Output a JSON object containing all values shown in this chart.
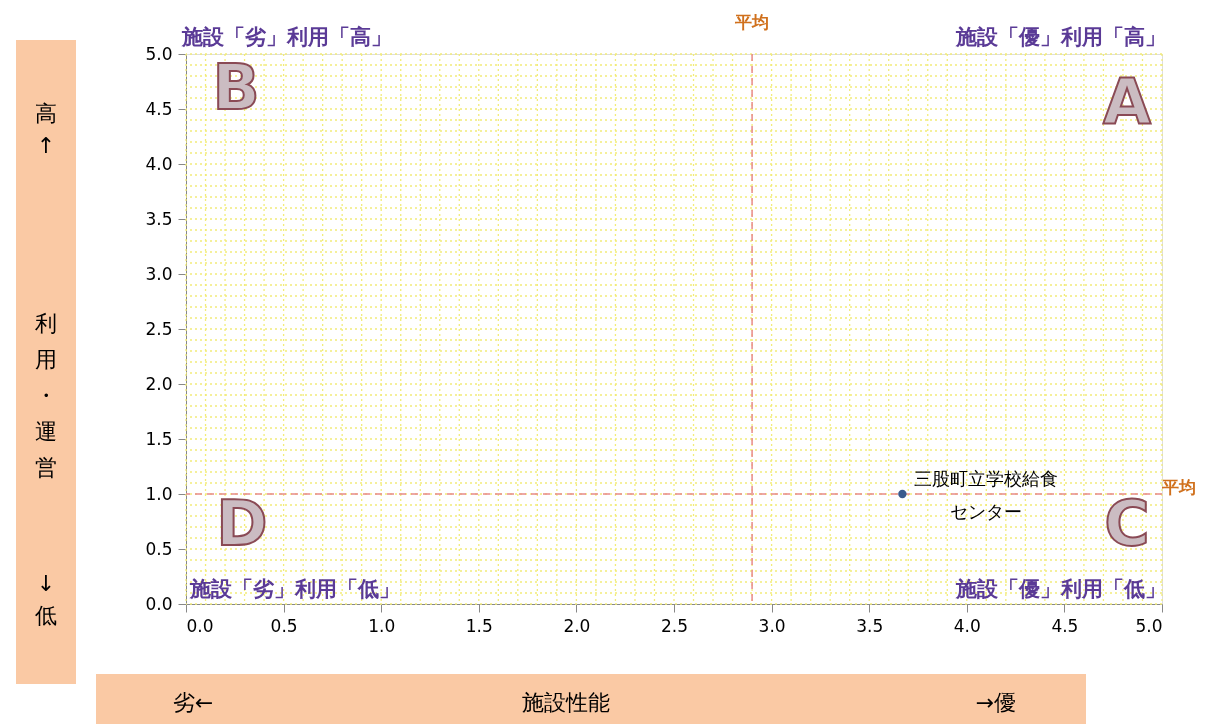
{
  "chart_data": {
    "type": "scatter",
    "xlabel": "施設性能",
    "ylabel": "利用・運営",
    "series": [
      {
        "name": "三股町立学校給食センター",
        "color": "#3a5a8c",
        "x": [
          3.67
        ],
        "values": [
          1.0
        ]
      }
    ],
    "xlim": [
      0,
      5
    ],
    "ylim": [
      0,
      5
    ],
    "xticks": [
      {
        "value": 0,
        "label": "0.0"
      },
      {
        "value": 0.5,
        "label": "0.5"
      },
      {
        "value": 1,
        "label": "1.0"
      },
      {
        "value": 1.5,
        "label": "1.5"
      },
      {
        "value": 2,
        "label": "2.0"
      },
      {
        "value": 2.5,
        "label": "2.5"
      },
      {
        "value": 3,
        "label": "3.0"
      },
      {
        "value": 3.5,
        "label": "3.5"
      },
      {
        "value": 4,
        "label": "4.0"
      },
      {
        "value": 4.5,
        "label": "4.5"
      },
      {
        "value": 5,
        "label": "5.0"
      }
    ],
    "yticks": [
      {
        "value": 0,
        "label": "0.0"
      },
      {
        "value": 0.5,
        "label": "0.5"
      },
      {
        "value": 1,
        "label": "1.0"
      },
      {
        "value": 1.5,
        "label": "1.5"
      },
      {
        "value": 2,
        "label": "2.0"
      },
      {
        "value": 2.5,
        "label": "2.5"
      },
      {
        "value": 3,
        "label": "3.0"
      },
      {
        "value": 3.5,
        "label": "3.5"
      },
      {
        "value": 4,
        "label": "4.0"
      },
      {
        "value": 4.5,
        "label": "4.5"
      },
      {
        "value": 5,
        "label": "5.0"
      }
    ],
    "ref_lines": [
      {
        "axis": "x",
        "value": 2.9,
        "label": "平均",
        "color": "#e88a8a",
        "line_style": "dashed"
      },
      {
        "axis": "y",
        "value": 1.0,
        "label": "平均",
        "color": "#e88a8a",
        "line_style": "dashed"
      }
    ],
    "annotations": [
      "施設「優」利用「高」",
      "施設「劣」利用「高」",
      "施設「優」利用「低」",
      "施設「劣」利用「低」",
      "A",
      "B",
      "C",
      "D",
      "高↑",
      "↓低",
      "劣←",
      "→優"
    ],
    "grid": true,
    "marker": "circle"
  }
}
